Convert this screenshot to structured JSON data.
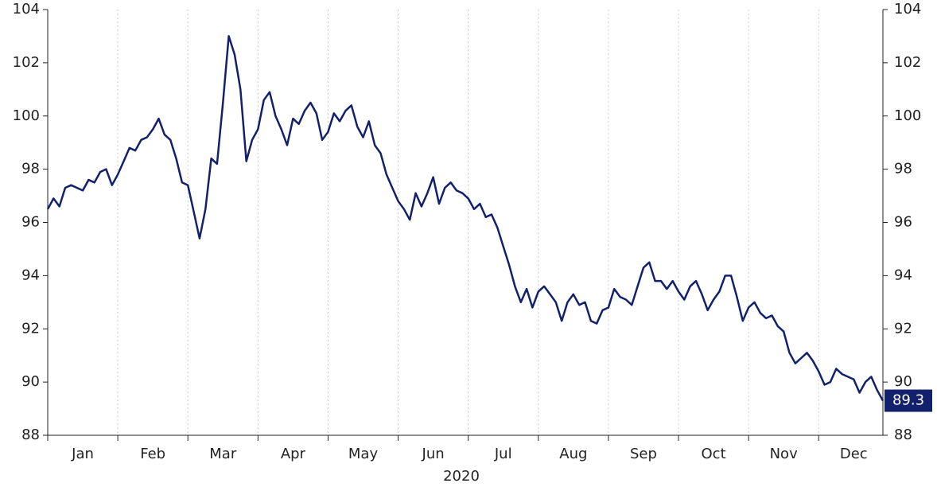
{
  "chart_data": {
    "type": "line",
    "xlabel": "2020",
    "categories": [
      null,
      null,
      null,
      null,
      null,
      null,
      "Jan",
      null,
      null,
      null,
      null,
      null,
      null,
      null,
      null,
      null,
      null,
      null,
      "Feb",
      null,
      null,
      null,
      null,
      null,
      null,
      null,
      null,
      null,
      null,
      null,
      "Mar",
      null,
      null,
      null,
      null,
      null,
      null,
      null,
      null,
      null,
      null,
      null,
      "Apr",
      null,
      null,
      null,
      null,
      null,
      null,
      null,
      null,
      null,
      null,
      null,
      "May",
      null,
      null,
      null,
      null,
      null,
      null,
      null,
      null,
      null,
      null,
      null,
      "Jun",
      null,
      null,
      null,
      null,
      null,
      null,
      null,
      null,
      null,
      null,
      null,
      "Jul",
      null,
      null,
      null,
      null,
      null,
      null,
      null,
      null,
      null,
      null,
      null,
      "Aug",
      null,
      null,
      null,
      null,
      null,
      null,
      null,
      null,
      null,
      null,
      null,
      "Sep",
      null,
      null,
      null,
      null,
      null,
      null,
      null,
      null,
      null,
      null,
      null,
      "Oct",
      null,
      null,
      null,
      null,
      null,
      null,
      null,
      null,
      null,
      null,
      null,
      "Nov",
      null,
      null,
      null,
      null,
      null,
      null,
      null,
      null,
      null,
      null,
      null,
      "Dec",
      null,
      null,
      null,
      null,
      null
    ],
    "series": [
      {
        "color": "#13206b",
        "values": [
          96.5,
          96.9,
          96.6,
          97.3,
          97.4,
          97.3,
          97.2,
          97.6,
          97.5,
          97.9,
          98.0,
          97.4,
          97.8,
          98.3,
          98.8,
          98.7,
          99.1,
          99.2,
          99.5,
          99.9,
          99.3,
          99.1,
          98.4,
          97.5,
          97.4,
          96.4,
          95.4,
          96.5,
          98.4,
          98.2,
          100.5,
          103.0,
          102.3,
          101.0,
          98.3,
          99.1,
          99.5,
          100.6,
          100.9,
          100.0,
          99.5,
          98.9,
          99.9,
          99.7,
          100.2,
          100.5,
          100.1,
          99.1,
          99.4,
          100.1,
          99.8,
          100.2,
          100.4,
          99.6,
          99.2,
          99.8,
          98.9,
          98.6,
          97.8,
          97.3,
          96.8,
          96.5,
          96.1,
          97.1,
          96.6,
          97.1,
          97.7,
          96.7,
          97.3,
          97.5,
          97.2,
          97.1,
          96.9,
          96.5,
          96.7,
          96.2,
          96.3,
          95.8,
          95.1,
          94.4,
          93.6,
          93.0,
          93.5,
          92.8,
          93.4,
          93.6,
          93.3,
          93.0,
          92.3,
          93.0,
          93.3,
          92.9,
          93.0,
          92.3,
          92.2,
          92.7,
          92.8,
          93.5,
          93.2,
          93.1,
          92.9,
          93.6,
          94.3,
          94.5,
          93.8,
          93.8,
          93.5,
          93.8,
          93.4,
          93.1,
          93.6,
          93.8,
          93.3,
          92.7,
          93.1,
          93.4,
          94.0,
          94.0,
          93.2,
          92.3,
          92.8,
          93.0,
          92.6,
          92.4,
          92.5,
          92.1,
          91.9,
          91.1,
          90.7,
          90.9,
          91.1,
          90.8,
          90.4,
          89.9,
          90.0,
          90.5,
          90.3,
          90.2,
          90.1,
          89.6,
          90.0,
          90.2,
          89.7,
          89.3
        ]
      }
    ],
    "ylim": [
      88,
      104
    ],
    "yticks": [
      88,
      90,
      92,
      94,
      96,
      98,
      100,
      102,
      104
    ],
    "grid": true
  }
}
